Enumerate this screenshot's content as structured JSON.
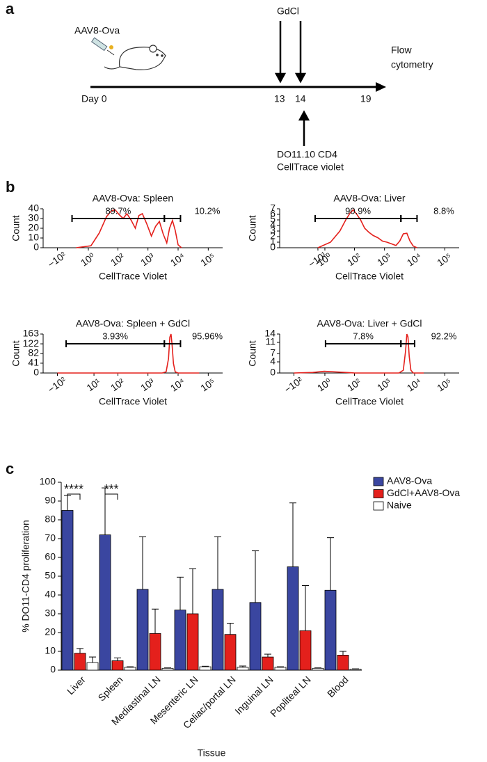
{
  "panel_labels": [
    "a",
    "b",
    "c"
  ],
  "timeline": {
    "injection": "AAV8-Ova",
    "treatment": "GdCl",
    "readout": [
      "Flow",
      "cytometry"
    ],
    "days": [
      "Day 0",
      "13",
      "14",
      "19"
    ],
    "transfer": [
      "DO11.10 CD4",
      "CellTrace violet"
    ]
  },
  "chart_data": [
    {
      "type": "line",
      "title": "AAV8-Ova: Spleen",
      "x_label": "CellTrace Violet",
      "y_label": "Count",
      "xscale": "biexponential",
      "color": "#e4201c",
      "xlim": [
        -300,
        300000
      ],
      "ylim": [
        0,
        40
      ],
      "yticks": [
        0,
        10,
        20,
        30,
        40
      ],
      "xticks": [
        {
          "value": -100,
          "label": "−10²"
        },
        {
          "value": 1,
          "label": "10⁰"
        },
        {
          "value": 100,
          "label": "10²"
        },
        {
          "value": 1000,
          "label": "10³"
        },
        {
          "value": 10000,
          "label": "10⁴"
        },
        {
          "value": 100000,
          "label": "10⁵"
        }
      ],
      "x": [
        -20,
        5,
        20,
        40,
        60,
        80,
        110,
        150,
        200,
        280,
        380,
        500,
        650,
        900,
        1300,
        1800,
        2400,
        3200,
        4200,
        5200,
        6500,
        8000,
        10000,
        13000
      ],
      "values": [
        0,
        2,
        15,
        32,
        38,
        39,
        34,
        30,
        35,
        28,
        20,
        33,
        35,
        25,
        12,
        22,
        27,
        14,
        5,
        20,
        28,
        18,
        3,
        0
      ],
      "gates": [
        {
          "x": [
            -30,
            3500
          ],
          "label": "89.7%"
        },
        {
          "x": [
            3500,
            12000
          ],
          "label": "10.2%"
        }
      ]
    },
    {
      "type": "line",
      "title": "AAV8-Ova: Liver",
      "x_label": "CellTrace Violet",
      "y_label": "Count",
      "xscale": "biexponential",
      "color": "#e4201c",
      "xlim": [
        -300,
        300000
      ],
      "ylim": [
        0,
        7
      ],
      "yticks": [
        0,
        1,
        2,
        3,
        4,
        5,
        6,
        7
      ],
      "xticks": [
        {
          "value": -10,
          "label": "−10¹"
        },
        {
          "value": 1,
          "label": "10⁰"
        },
        {
          "value": 100,
          "label": "10²"
        },
        {
          "value": 1000,
          "label": "10³"
        },
        {
          "value": 10000,
          "label": "10⁴"
        },
        {
          "value": 100000,
          "label": "10⁵"
        }
      ],
      "x": [
        -10,
        10,
        30,
        50,
        70,
        90,
        120,
        160,
        220,
        300,
        420,
        600,
        850,
        1200,
        1700,
        2400,
        3200,
        4200,
        5500,
        7000,
        9000,
        12000
      ],
      "values": [
        0,
        1,
        3,
        5,
        6.2,
        6.8,
        6,
        5,
        3.5,
        2.8,
        2.2,
        1.8,
        1.2,
        1,
        0.7,
        0.4,
        1.2,
        2.5,
        2.6,
        1.2,
        0.3,
        0
      ],
      "gates": [
        {
          "x": [
            -15,
            3500
          ],
          "label": "90.9%"
        },
        {
          "x": [
            3500,
            12000
          ],
          "label": "8.8%"
        }
      ]
    },
    {
      "type": "line",
      "title": "AAV8-Ova: Spleen + GdCl",
      "x_label": "CellTrace Violet",
      "y_label": "Count",
      "xscale": "biexponential",
      "color": "#e4201c",
      "xlim": [
        -300,
        300000
      ],
      "ylim": [
        0,
        163
      ],
      "yticks": [
        0,
        41,
        82,
        122,
        163
      ],
      "xticks": [
        {
          "value": -100,
          "label": "−10²"
        },
        {
          "value": 10,
          "label": "10¹"
        },
        {
          "value": 100,
          "label": "10²"
        },
        {
          "value": 1000,
          "label": "10³"
        },
        {
          "value": 10000,
          "label": "10⁴"
        },
        {
          "value": 100000,
          "label": "10⁵"
        }
      ],
      "x": [
        -100,
        1000,
        3000,
        4000,
        4800,
        5300,
        5800,
        6300,
        7000,
        8000,
        10000,
        50000
      ],
      "values": [
        0,
        0,
        0,
        5,
        60,
        150,
        163,
        120,
        40,
        5,
        0,
        0
      ],
      "gates": [
        {
          "x": [
            -50,
            3500
          ],
          "label": "3.93%"
        },
        {
          "x": [
            3500,
            12000
          ],
          "label": "95.96%"
        }
      ]
    },
    {
      "type": "line",
      "title": "AAV8-Ova: Liver + GdCl",
      "x_label": "CellTrace Violet",
      "y_label": "Count",
      "xscale": "biexponential",
      "color": "#e4201c",
      "xlim": [
        -300,
        300000
      ],
      "ylim": [
        0,
        14
      ],
      "yticks": [
        0,
        4,
        7,
        11,
        14
      ],
      "xticks": [
        {
          "value": -100,
          "label": "−10²"
        },
        {
          "value": 1,
          "label": "10⁰"
        },
        {
          "value": 100,
          "label": "10²"
        },
        {
          "value": 1000,
          "label": "10³"
        },
        {
          "value": 10000,
          "label": "10⁴"
        },
        {
          "value": 100000,
          "label": "10⁵"
        }
      ],
      "x": [
        -100,
        -20,
        0,
        20,
        50,
        100,
        300,
        1000,
        3000,
        4200,
        5000,
        5500,
        6000,
        6600,
        7500,
        9000,
        20000
      ],
      "values": [
        0,
        0.2,
        0.6,
        0.4,
        0.2,
        0,
        0,
        0,
        0,
        1,
        8,
        14,
        13,
        6,
        1,
        0,
        0
      ],
      "gates": [
        {
          "x": [
            2,
            3500
          ],
          "label": "7.8%"
        },
        {
          "x": [
            3500,
            10000
          ],
          "label": "92.2%"
        }
      ]
    },
    {
      "type": "bar",
      "x_label": "Tissue",
      "y_label": "% DO11-CD4 proliferation",
      "legend": "right",
      "categories": [
        "Liver",
        "Spleen",
        "Mediastinal LN",
        "Mesenteric LN",
        "Celiac/portal LN",
        "Inguinal LN",
        "Popliteal LN",
        "Blood"
      ],
      "ylim": [
        0,
        100
      ],
      "yticks": [
        0,
        10,
        20,
        30,
        40,
        50,
        60,
        70,
        80,
        90,
        100
      ],
      "series": [
        {
          "name": "AAV8-Ova",
          "color": "#3a46a0",
          "values": [
            85,
            72,
            43,
            32,
            43,
            36,
            55,
            42.5
          ],
          "errors": [
            8,
            25,
            28,
            17.5,
            28,
            27.5,
            34,
            28
          ]
        },
        {
          "name": "GdCl+AAV8-Ova",
          "color": "#e4201c",
          "values": [
            9,
            5,
            19.5,
            30,
            19,
            7,
            21,
            8
          ],
          "errors": [
            2.5,
            1.5,
            13,
            24,
            6,
            1.5,
            24,
            2
          ]
        },
        {
          "name": "Naive",
          "color": "#ffffff",
          "values": [
            4,
            1.5,
            1,
            1.8,
            1.5,
            1.5,
            1,
            0.5
          ],
          "errors": [
            3,
            0.3,
            0.2,
            0.3,
            0.7,
            0.3,
            0.2,
            0.2
          ]
        }
      ],
      "annotations": [
        {
          "text": "****",
          "category": "Liver"
        },
        {
          "text": "***",
          "category": "Spleen"
        }
      ]
    }
  ]
}
